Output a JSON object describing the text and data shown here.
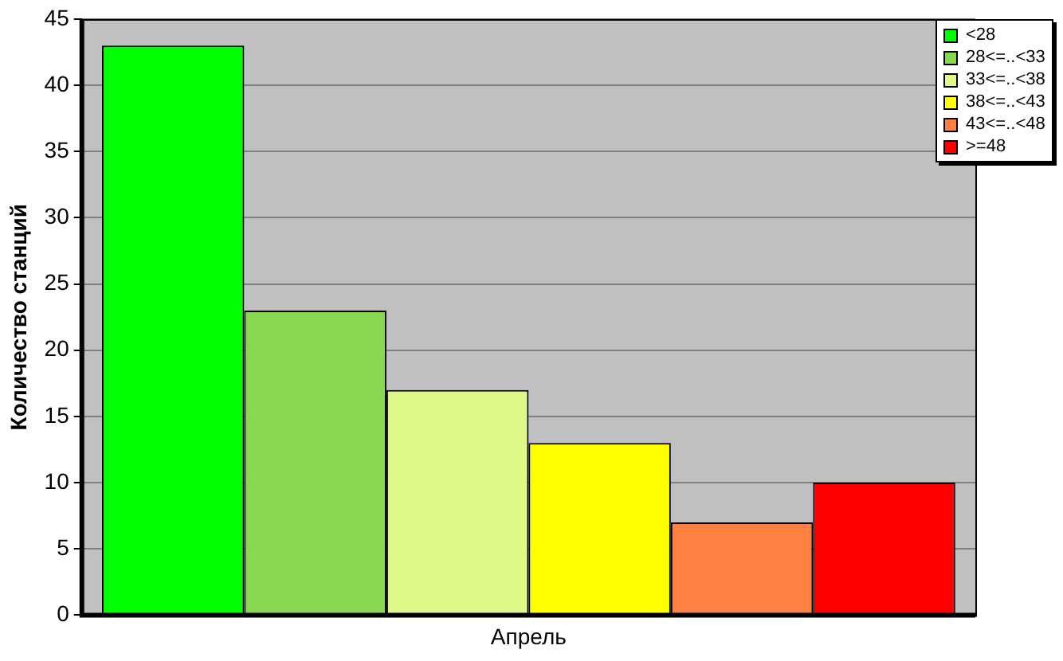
{
  "chart_data": {
    "type": "bar",
    "ylabel": "Количество станций",
    "categories": [
      "Апрель"
    ],
    "series": [
      {
        "name": "<28",
        "color": "#00ff00",
        "values": [
          43
        ]
      },
      {
        "name": "28<=..<33",
        "color": "#88d850",
        "values": [
          23
        ]
      },
      {
        "name": "33<=..<38",
        "color": "#e0f888",
        "values": [
          17
        ]
      },
      {
        "name": "38<=..<43",
        "color": "#ffff00",
        "values": [
          13
        ]
      },
      {
        "name": "43<=..<48",
        "color": "#ff8040",
        "values": [
          7
        ]
      },
      {
        "name": ">=48",
        "color": "#ff0000",
        "values": [
          10
        ]
      }
    ],
    "ylim": [
      0,
      45
    ],
    "yticks": [
      0,
      5,
      10,
      15,
      20,
      25,
      30,
      35,
      40,
      45
    ],
    "grid": "y",
    "legend": "top right"
  }
}
